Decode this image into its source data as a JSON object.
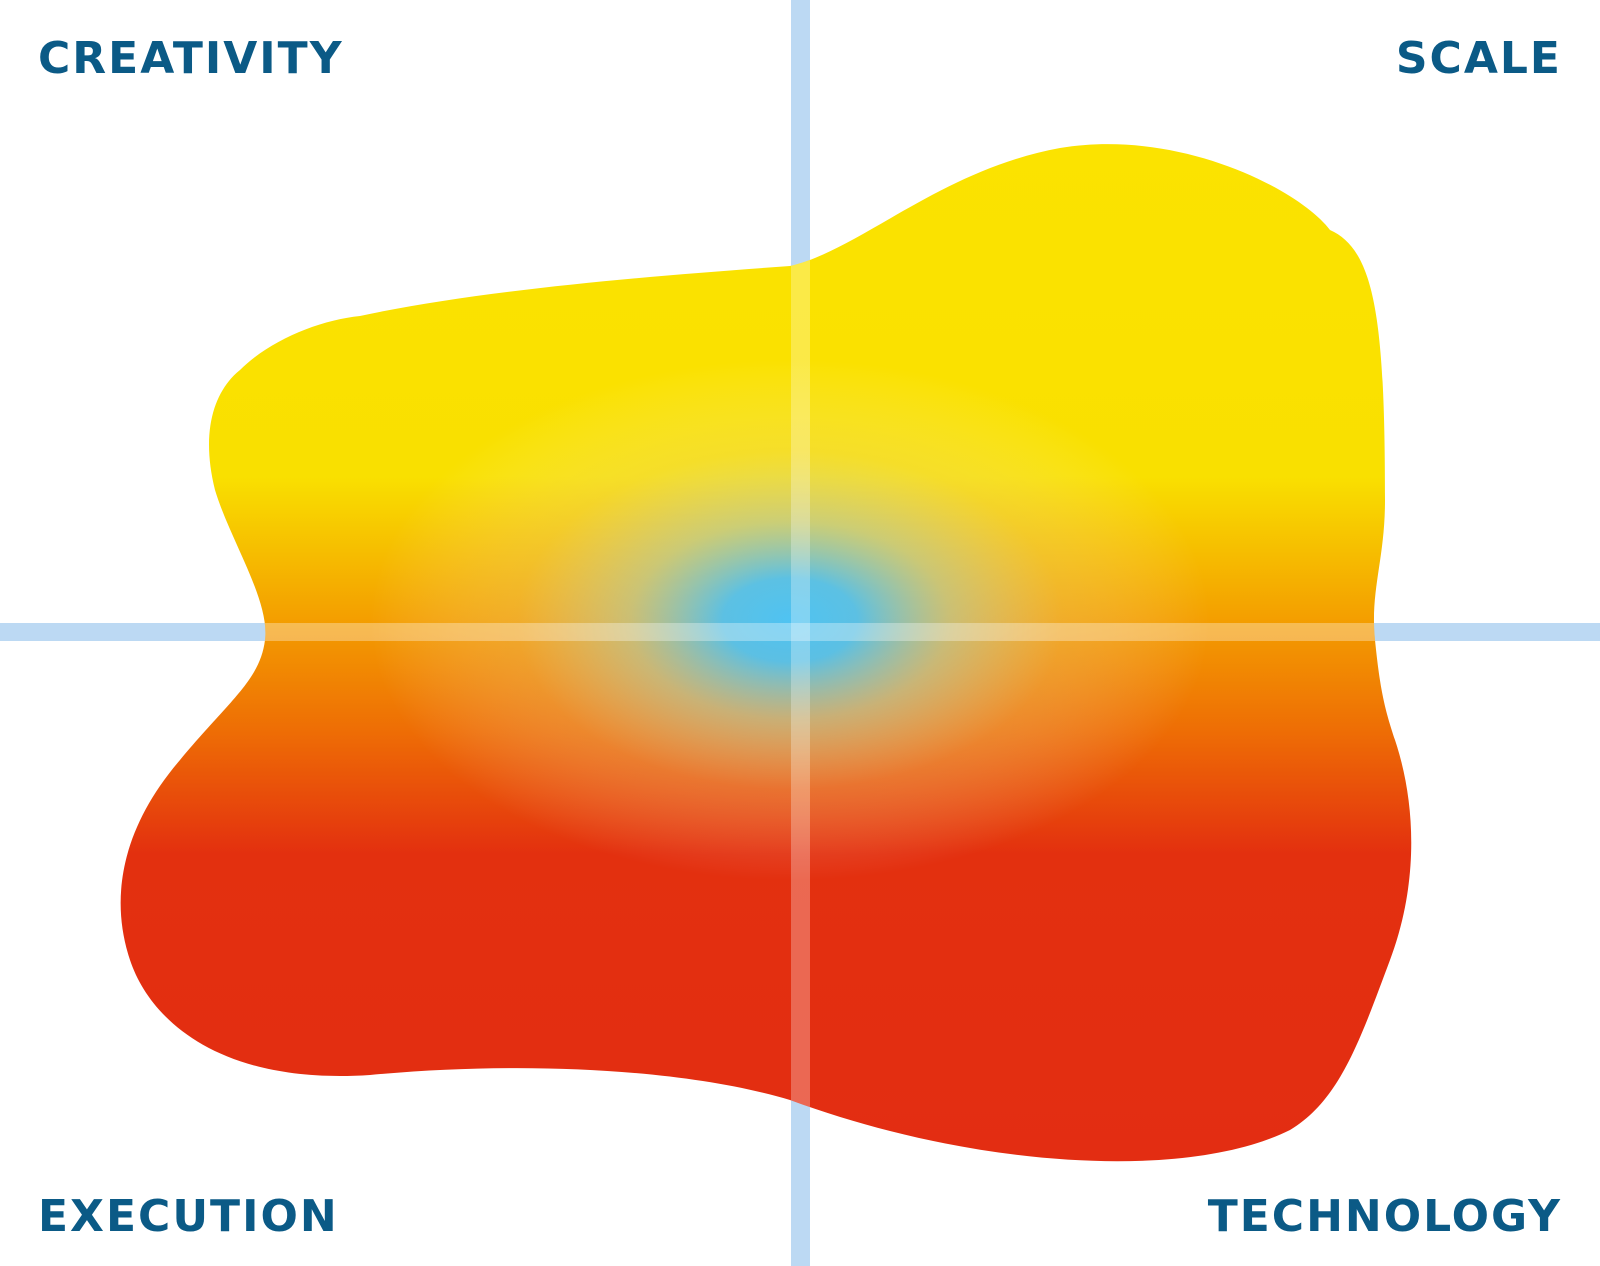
{
  "labels": {
    "top_left": "CREATIVITY",
    "top_right": "SCALE",
    "bottom_left": "EXECUTION",
    "bottom_right": "TECHNOLOGY"
  },
  "colors": {
    "label": "#0b5a86",
    "axis": "#bcd9f3",
    "blob_top": "#fbe300",
    "blob_mid": "#f28c00",
    "blob_bottom": "#e32d12",
    "center_glow": "#4fc3f2"
  }
}
